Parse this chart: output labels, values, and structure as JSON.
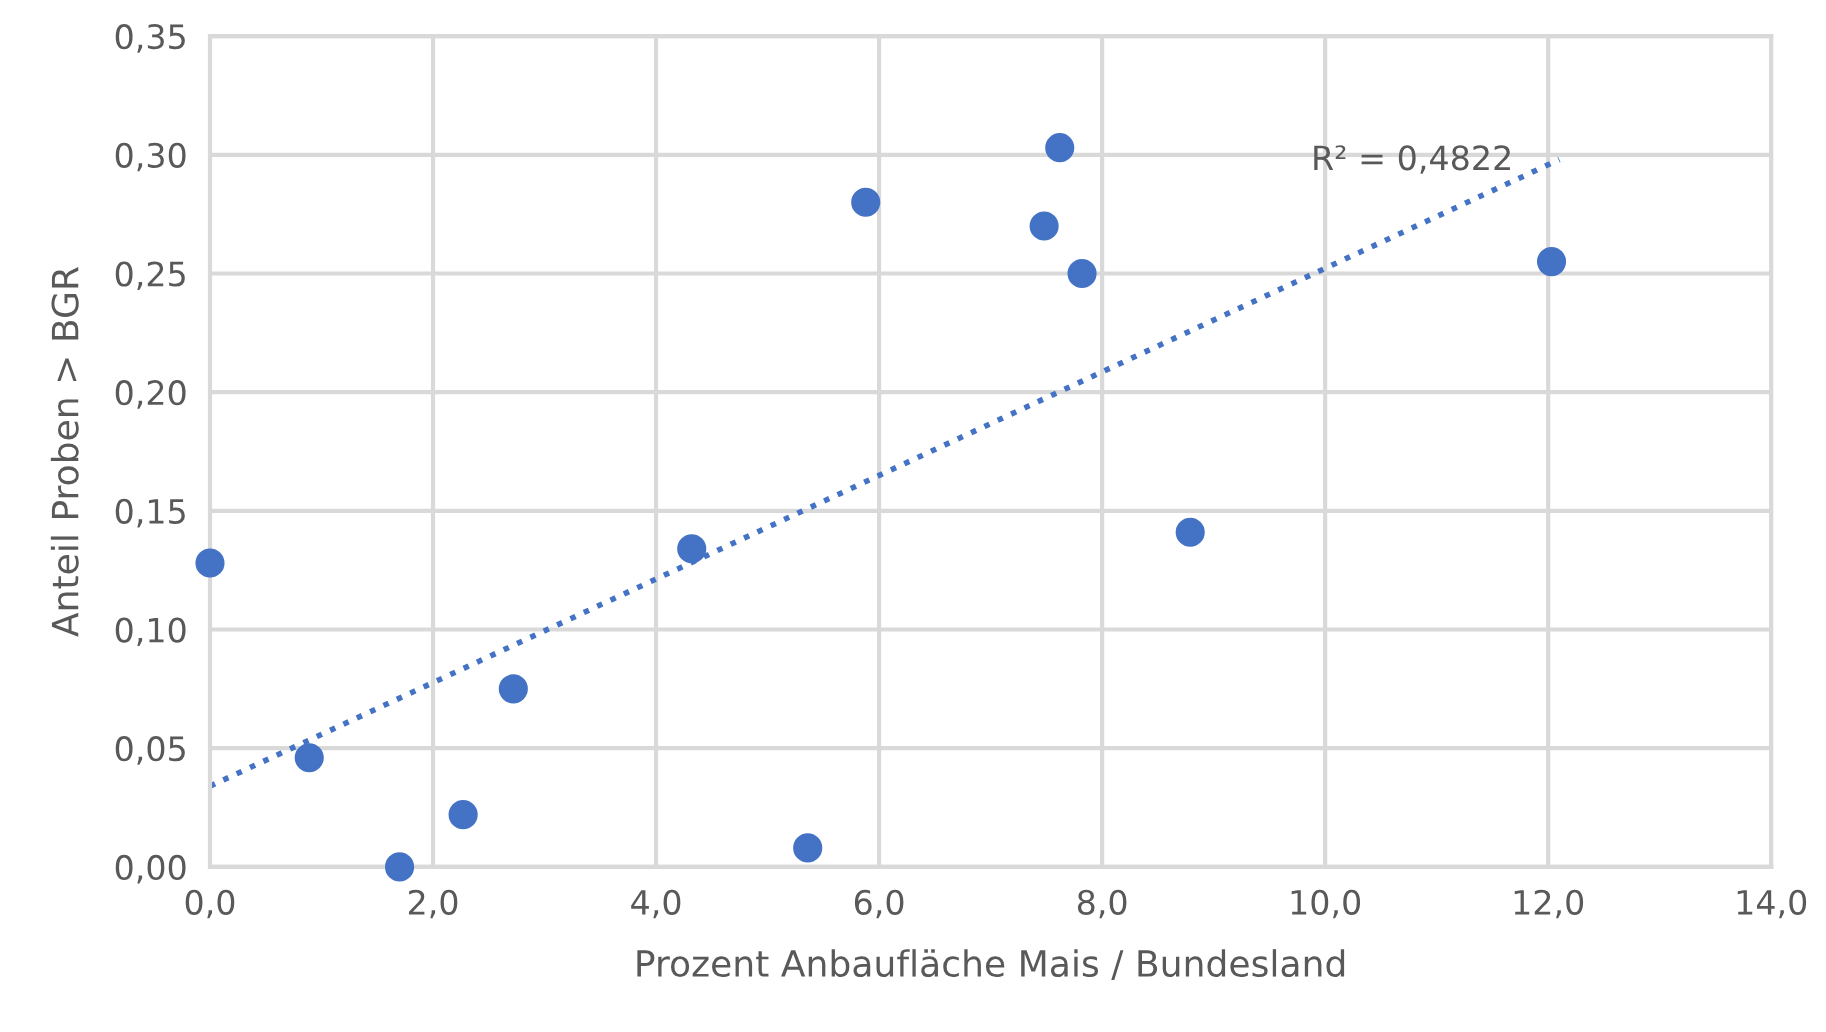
{
  "chart_data": {
    "type": "scatter",
    "xlabel": "Prozent Anbaufläche Mais / Bundesland",
    "ylabel": "Anteil Proben > BGR",
    "series": [
      {
        "color": "#4472c4",
        "marker": "circle",
        "x": [
          0.0,
          0.89,
          1.7,
          2.27,
          2.72,
          4.32,
          5.36,
          5.88,
          7.48,
          7.62,
          7.82,
          8.79,
          12.03
        ],
        "values": [
          0.128,
          0.046,
          0.0,
          0.022,
          0.075,
          0.134,
          0.008,
          0.28,
          0.27,
          0.303,
          0.25,
          0.141,
          0.255
        ]
      },
      {
        "type": "line",
        "color": "#4472c4",
        "line_style": "dotted",
        "marker": "none",
        "x": [
          0.0,
          12.1
        ],
        "values": [
          0.034,
          0.298
        ]
      }
    ],
    "annotations": [
      "R² = 0,4822"
    ],
    "xlim": [
      0,
      14
    ],
    "xticks": [
      {
        "value": 0,
        "label": "0,0"
      },
      {
        "value": 2,
        "label": "2,0"
      },
      {
        "value": 4,
        "label": "4,0"
      },
      {
        "value": 6,
        "label": "6,0"
      },
      {
        "value": 8,
        "label": "8,0"
      },
      {
        "value": 10,
        "label": "10,0"
      },
      {
        "value": 12,
        "label": "12,0"
      },
      {
        "value": 14,
        "label": "14,0"
      }
    ],
    "ylim": [
      0,
      0.35
    ],
    "yticks": [
      {
        "value": 0,
        "label": "0,00"
      },
      {
        "value": 0.05,
        "label": "0,05"
      },
      {
        "value": 0.1,
        "label": "0,10"
      },
      {
        "value": 0.15,
        "label": "0,15"
      },
      {
        "value": 0.2,
        "label": "0,20"
      },
      {
        "value": 0.25,
        "label": "0,25"
      },
      {
        "value": 0.3,
        "label": "0,30"
      },
      {
        "value": 0.35,
        "label": "0,35"
      }
    ],
    "grid": true,
    "legend": false
  }
}
